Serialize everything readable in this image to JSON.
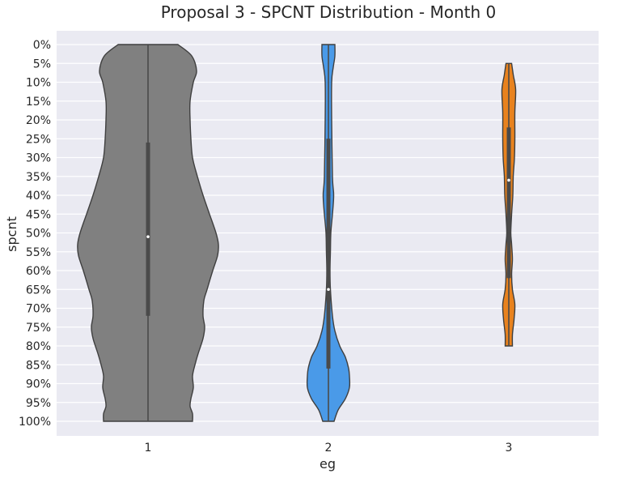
{
  "chart_data": {
    "type": "violin",
    "title": "Proposal 3 - SPCNT Distribution - Month 0",
    "xlabel": "eg",
    "ylabel": "spcnt",
    "categories": [
      "1",
      "2",
      "3"
    ],
    "y_ticks": [
      "0%",
      "5%",
      "10%",
      "15%",
      "20%",
      "25%",
      "30%",
      "35%",
      "40%",
      "45%",
      "50%",
      "55%",
      "60%",
      "65%",
      "70%",
      "75%",
      "80%",
      "85%",
      "90%",
      "95%",
      "100%"
    ],
    "y_axis_inverted": true,
    "ylim": [
      0,
      100
    ],
    "grid": true,
    "background_color": "#eaeaf2",
    "series": [
      {
        "category": "1",
        "color": "#808080",
        "min": 0,
        "max": 100,
        "q1": 26,
        "median": 51,
        "q3": 72,
        "profile": [
          [
            0,
            0.37
          ],
          [
            3,
            0.54
          ],
          [
            7,
            0.6
          ],
          [
            10,
            0.56
          ],
          [
            15,
            0.52
          ],
          [
            20,
            0.52
          ],
          [
            25,
            0.53
          ],
          [
            30,
            0.55
          ],
          [
            35,
            0.61
          ],
          [
            40,
            0.68
          ],
          [
            45,
            0.76
          ],
          [
            50,
            0.84
          ],
          [
            53,
            0.87
          ],
          [
            56,
            0.86
          ],
          [
            60,
            0.8
          ],
          [
            65,
            0.73
          ],
          [
            68,
            0.69
          ],
          [
            72,
            0.68
          ],
          [
            75,
            0.7
          ],
          [
            78,
            0.68
          ],
          [
            82,
            0.62
          ],
          [
            85,
            0.58
          ],
          [
            88,
            0.55
          ],
          [
            91,
            0.56
          ],
          [
            94,
            0.53
          ],
          [
            96,
            0.52
          ],
          [
            98,
            0.55
          ],
          [
            100,
            0.55
          ]
        ]
      },
      {
        "category": "2",
        "color": "#4a9ae8",
        "min": 0,
        "max": 100,
        "q1": 25,
        "median": 65,
        "q3": 86,
        "profile": [
          [
            0,
            0.08
          ],
          [
            3,
            0.08
          ],
          [
            6,
            0.06
          ],
          [
            10,
            0.04
          ],
          [
            20,
            0.04
          ],
          [
            35,
            0.05
          ],
          [
            40,
            0.065
          ],
          [
            45,
            0.05
          ],
          [
            50,
            0.03
          ],
          [
            55,
            0.025
          ],
          [
            60,
            0.02
          ],
          [
            65,
            0.025
          ],
          [
            72,
            0.05
          ],
          [
            76,
            0.08
          ],
          [
            80,
            0.14
          ],
          [
            83,
            0.21
          ],
          [
            86,
            0.25
          ],
          [
            88,
            0.26
          ],
          [
            91,
            0.26
          ],
          [
            94,
            0.21
          ],
          [
            97,
            0.12
          ],
          [
            100,
            0.07
          ]
        ]
      },
      {
        "category": "3",
        "color": "#e8821e",
        "min": 5,
        "max": 80,
        "q1": 22,
        "median": 36,
        "q3": 62,
        "profile": [
          [
            5,
            0.035
          ],
          [
            8,
            0.055
          ],
          [
            12,
            0.085
          ],
          [
            18,
            0.075
          ],
          [
            25,
            0.075
          ],
          [
            30,
            0.07
          ],
          [
            35,
            0.055
          ],
          [
            40,
            0.05
          ],
          [
            45,
            0.035
          ],
          [
            50,
            0.025
          ],
          [
            53,
            0.035
          ],
          [
            57,
            0.045
          ],
          [
            61,
            0.035
          ],
          [
            65,
            0.045
          ],
          [
            69,
            0.075
          ],
          [
            73,
            0.065
          ],
          [
            77,
            0.045
          ],
          [
            80,
            0.045
          ]
        ]
      }
    ]
  }
}
